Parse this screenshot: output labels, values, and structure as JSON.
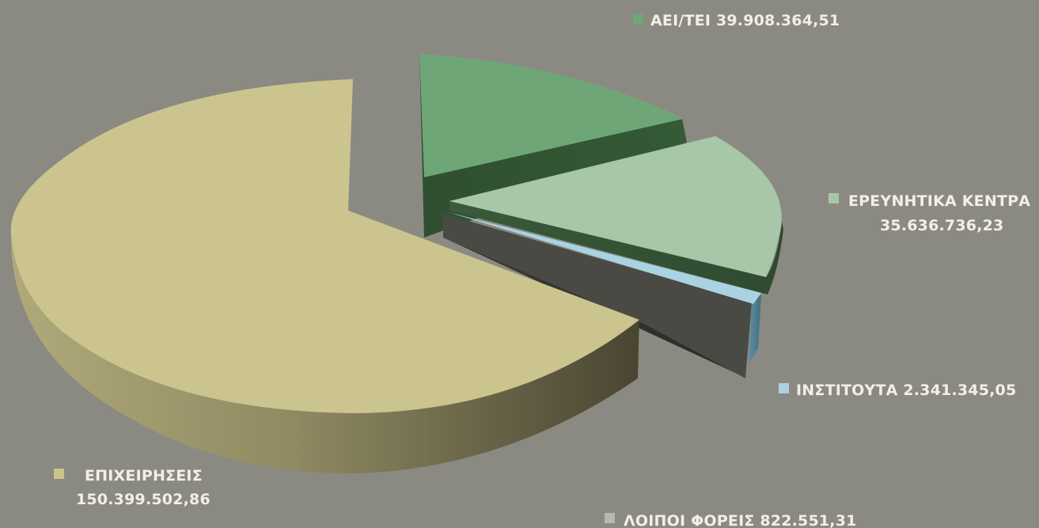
{
  "chart_data": {
    "type": "pie",
    "style": "3d-exploded",
    "slices": [
      {
        "label": "ΑΕΙ/ΤΕΙ",
        "value_text": "39.908.364,51",
        "value": 39908364.51,
        "color": "#6fa677"
      },
      {
        "label": "ΕΡΕΥΝΗΤΙΚΑ ΚΕΝΤΡΑ",
        "value_text": "35.636.736,23",
        "value": 35636736.23,
        "color": "#a7c7a8"
      },
      {
        "label": "ΙΝΣΤΙΤΟΥΤΑ",
        "value_text": "2.341.345,05",
        "value": 2341345.05,
        "color": "#a9d3e3"
      },
      {
        "label": "ΛΟΙΠΟΙ ΦΟΡΕΙΣ",
        "value_text": "822.551,31",
        "value": 822551.31,
        "color": "#4a4a44"
      },
      {
        "label": "ΕΠΙΧΕΙΡΗΣΕΙΣ",
        "value_text": "150.399.502,86",
        "value": 150399502.86,
        "color": "#cbc48e"
      }
    ]
  }
}
